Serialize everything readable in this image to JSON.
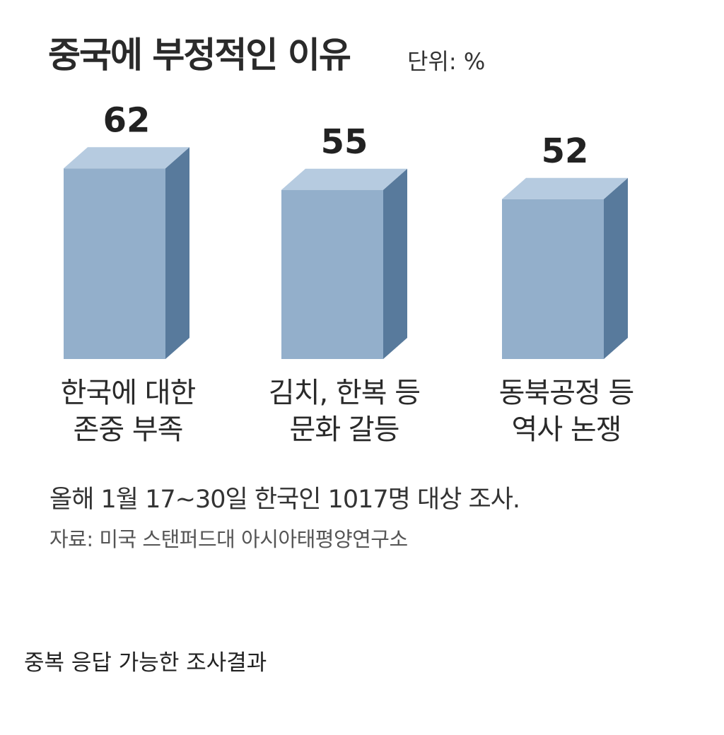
{
  "chart_data": {
    "type": "bar",
    "title": "중국에 부정적인 이유",
    "unit_label": "단위: %",
    "categories": [
      [
        "한국에 대한",
        "존중 부족"
      ],
      [
        "김치, 한복 등",
        "문화 갈등"
      ],
      [
        "동북공정 등",
        "역사 논쟁"
      ]
    ],
    "values": [
      62,
      55,
      52
    ],
    "value_labels": [
      "62",
      "55",
      "52"
    ],
    "ylim": [
      0,
      70
    ],
    "grid": false,
    "style": "3d-column",
    "colors": {
      "front": "#93afcb",
      "top": "#b6cbe0",
      "side": "#587a9c"
    },
    "footnote": "올해 1월 17~30일 한국인 1017명 대상 조사.",
    "source": "자료: 미국 스탠퍼드대 아시아태평양연구소"
  },
  "caption": "중복 응답 가능한 조사결과"
}
